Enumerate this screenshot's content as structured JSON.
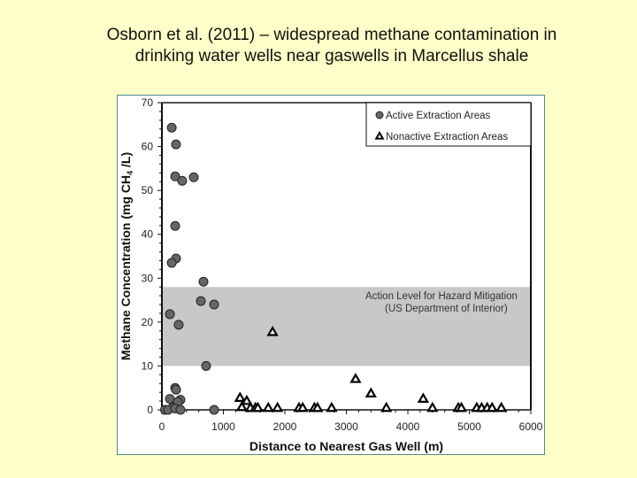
{
  "slide": {
    "title_line1": "Osborn et al. (2011) – widespread methane contamination in",
    "title_line2": "drinking water wells near gaswells in Marcellus shale",
    "background_color": "#ffffc9"
  },
  "chart_data": {
    "type": "scatter",
    "title": "Osborn et al. (2011) – widespread methane contamination in drinking water wells near gaswells in Marcellus shale",
    "xlabel": "Distance to Nearest Gas Well (m)",
    "ylabel": "Methane Concentration (mg CH4 /L)",
    "xlim": [
      0,
      6000
    ],
    "ylim": [
      0,
      70
    ],
    "x_ticks": [
      0,
      1000,
      2000,
      3000,
      4000,
      5000,
      6000
    ],
    "y_ticks": [
      0,
      10,
      20,
      30,
      40,
      50,
      60,
      70
    ],
    "grid": false,
    "legend_position": "upper right",
    "legend": [
      "Active Extraction Areas",
      "Nonactive Extraction Areas"
    ],
    "band": {
      "y_from": 10,
      "y_to": 28,
      "label_line1": "Action Level for Hazard Mitigation",
      "label_line2": "(US Department of Interior)",
      "color": "#c8c8c8"
    },
    "series": [
      {
        "name": "Active Extraction Areas",
        "marker": "circle",
        "color": "#666666",
        "points": [
          [
            160,
            64.3
          ],
          [
            230,
            60.5
          ],
          [
            216,
            53.2
          ],
          [
            330,
            52.2
          ],
          [
            518,
            53.0
          ],
          [
            216,
            41.9
          ],
          [
            230,
            34.5
          ],
          [
            160,
            33.5
          ],
          [
            676,
            29.2
          ],
          [
            633,
            24.8
          ],
          [
            849,
            24.0
          ],
          [
            130,
            21.8
          ],
          [
            273,
            19.4
          ],
          [
            719,
            10.0
          ],
          [
            216,
            5.0
          ],
          [
            230,
            4.6
          ],
          [
            130,
            2.5
          ],
          [
            302,
            2.3
          ],
          [
            259,
            1.8
          ],
          [
            173,
            0.5
          ],
          [
            50,
            0.0
          ],
          [
            101,
            0.0
          ],
          [
            216,
            0.3
          ],
          [
            302,
            0.0
          ],
          [
            849,
            0.0
          ]
        ]
      },
      {
        "name": "Nonactive Extraction Areas",
        "marker": "triangle",
        "color": "#000000",
        "points": [
          [
            1800,
            17.5
          ],
          [
            3150,
            6.8
          ],
          [
            3400,
            3.5
          ],
          [
            4250,
            2.3
          ],
          [
            1270,
            2.5
          ],
          [
            1380,
            1.8
          ],
          [
            1300,
            0.4
          ],
          [
            1440,
            0.2
          ],
          [
            1520,
            0.2
          ],
          [
            1560,
            0.2
          ],
          [
            1730,
            0.2
          ],
          [
            1880,
            0.2
          ],
          [
            2230,
            0.2
          ],
          [
            2290,
            0.2
          ],
          [
            2480,
            0.2
          ],
          [
            2530,
            0.2
          ],
          [
            2760,
            0.2
          ],
          [
            3650,
            0.2
          ],
          [
            4400,
            0.2
          ],
          [
            4820,
            0.2
          ],
          [
            4870,
            0.2
          ],
          [
            5120,
            0.2
          ],
          [
            5200,
            0.2
          ],
          [
            5290,
            0.2
          ],
          [
            5370,
            0.2
          ],
          [
            5520,
            0.2
          ]
        ]
      }
    ]
  }
}
